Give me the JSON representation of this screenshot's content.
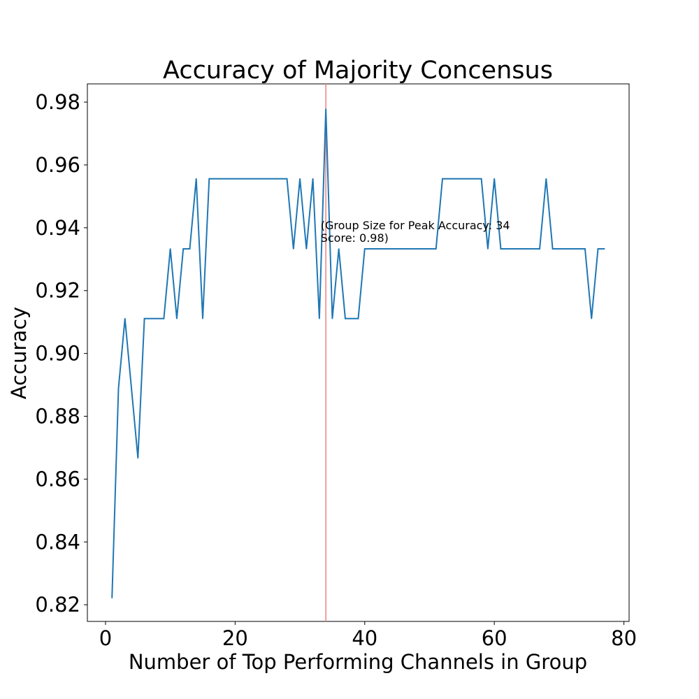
{
  "chart_data": {
    "type": "line",
    "title": "Accuracy of Majority Concensus",
    "xlabel": "Number of Top Performing Channels in Group",
    "ylabel": "Accuracy",
    "xlim": [
      -2.8,
      80.8
    ],
    "ylim": [
      0.8147,
      0.9858
    ],
    "xticks": [
      0,
      20,
      40,
      60,
      80
    ],
    "xtick_labels": [
      "0",
      "20",
      "40",
      "60",
      "80"
    ],
    "yticks": [
      0.82,
      0.84,
      0.86,
      0.88,
      0.9,
      0.92,
      0.94,
      0.96,
      0.98
    ],
    "ytick_labels": [
      "0.82",
      "0.84",
      "0.86",
      "0.88",
      "0.90",
      "0.92",
      "0.94",
      "0.96",
      "0.98"
    ],
    "grid": false,
    "series": [
      {
        "color": "#1f77b4",
        "x": [
          1,
          2,
          3,
          4,
          5,
          6,
          7,
          8,
          9,
          10,
          11,
          12,
          13,
          14,
          15,
          16,
          17,
          18,
          19,
          20,
          21,
          22,
          23,
          24,
          25,
          26,
          27,
          28,
          29,
          30,
          31,
          32,
          33,
          34,
          35,
          36,
          37,
          38,
          39,
          40,
          41,
          42,
          43,
          44,
          45,
          46,
          47,
          48,
          49,
          50,
          51,
          52,
          53,
          54,
          55,
          56,
          57,
          58,
          59,
          60,
          61,
          62,
          63,
          64,
          65,
          66,
          67,
          68,
          69,
          70,
          71,
          72,
          73,
          74,
          75,
          76,
          77
        ],
        "y": [
          0.8222,
          0.8889,
          0.9111,
          0.8889,
          0.8667,
          0.9111,
          0.9111,
          0.9111,
          0.9111,
          0.9333,
          0.9111,
          0.9333,
          0.9333,
          0.9556,
          0.9111,
          0.9556,
          0.9556,
          0.9556,
          0.9556,
          0.9556,
          0.9556,
          0.9556,
          0.9556,
          0.9556,
          0.9556,
          0.9556,
          0.9556,
          0.9556,
          0.9333,
          0.9556,
          0.9333,
          0.9556,
          0.9111,
          0.9778,
          0.9111,
          0.9333,
          0.9111,
          0.9111,
          0.9111,
          0.9333,
          0.9333,
          0.9333,
          0.9333,
          0.9333,
          0.9333,
          0.9333,
          0.9333,
          0.9333,
          0.9333,
          0.9333,
          0.9333,
          0.9556,
          0.9556,
          0.9556,
          0.9556,
          0.9556,
          0.9556,
          0.9556,
          0.9333,
          0.9556,
          0.9333,
          0.9333,
          0.9333,
          0.9333,
          0.9333,
          0.9333,
          0.9333,
          0.9556,
          0.9333,
          0.9333,
          0.9333,
          0.9333,
          0.9333,
          0.9333,
          0.9111,
          0.9333,
          0.9333
        ]
      }
    ],
    "vline": {
      "x": 34,
      "color": "#f08080"
    },
    "annotation": {
      "x": 33.2,
      "y": 0.9395,
      "lines": [
        "(Group Size for Peak Accuracy: 34",
        "Score: 0.98)"
      ]
    }
  }
}
